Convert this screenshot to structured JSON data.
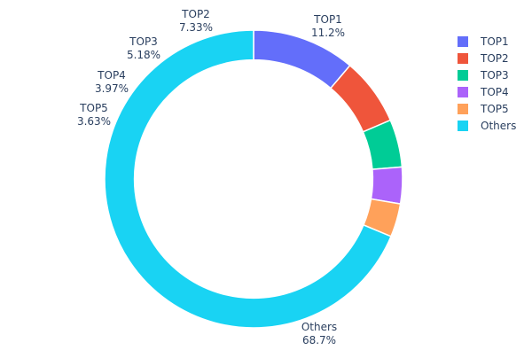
{
  "chart_data": {
    "type": "pie",
    "hole": 0.8,
    "direction": "clockwise",
    "start_angle": "top",
    "labels": [
      "TOP1",
      "TOP2",
      "TOP3",
      "TOP4",
      "TOP5",
      "Others"
    ],
    "values": [
      11.2,
      7.33,
      5.18,
      3.97,
      3.63,
      68.7
    ],
    "value_labels": [
      "11.2%",
      "7.33%",
      "5.18%",
      "3.97%",
      "3.63%",
      "68.7%"
    ],
    "colors": [
      "#636efa",
      "#EF553B",
      "#00cc96",
      "#ab63fa",
      "#FFA15A",
      "#19d3f3"
    ],
    "legend": {
      "placement": "top-right",
      "entries": [
        "TOP1",
        "TOP2",
        "TOP3",
        "TOP4",
        "TOP5",
        "Others"
      ]
    }
  }
}
